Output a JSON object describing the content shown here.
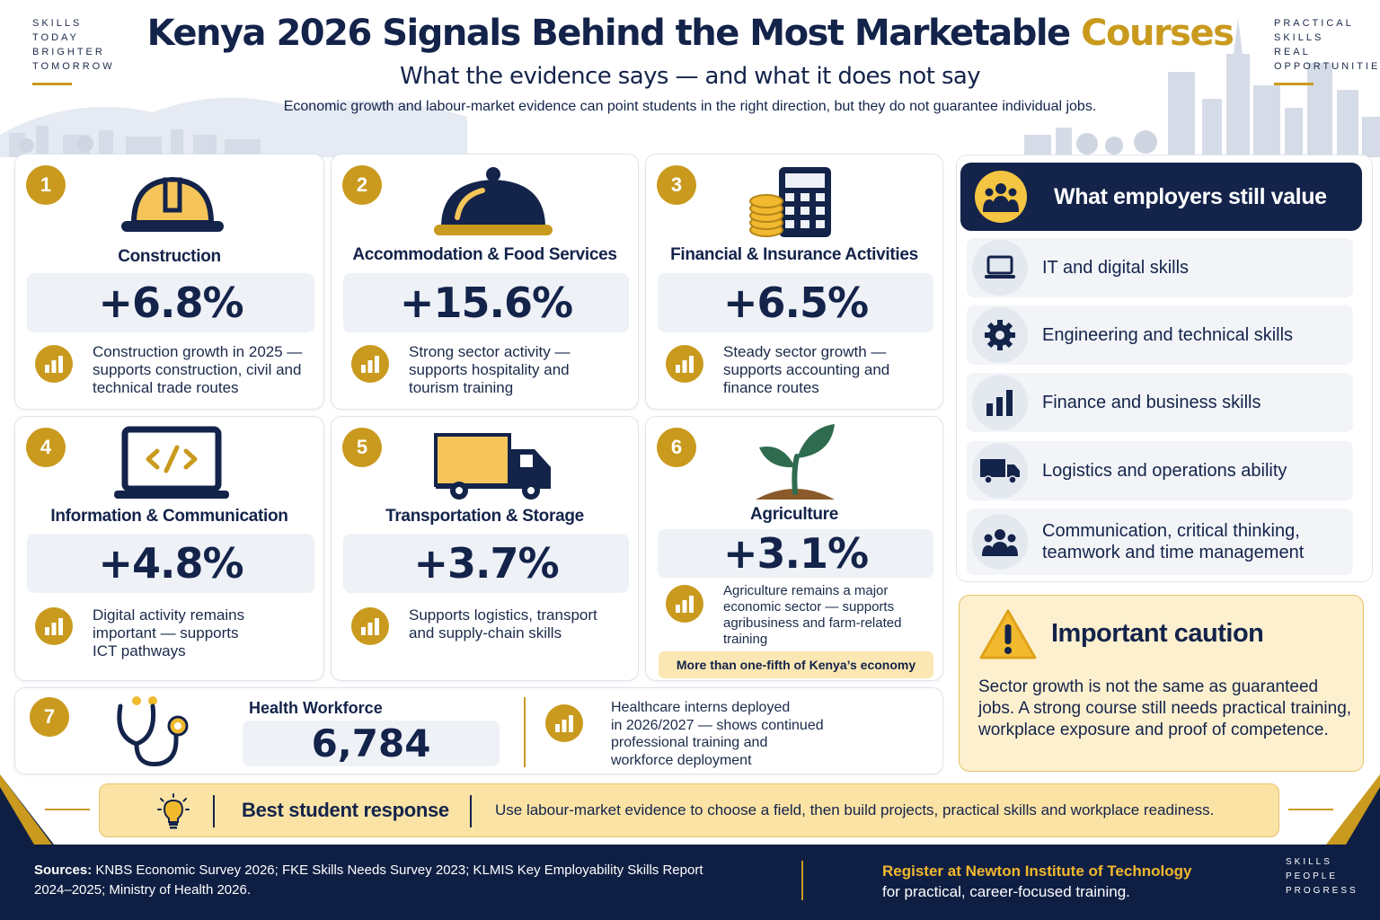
{
  "corner_left": [
    "SKILLS",
    "TODAY",
    "BRIGHTER",
    "TOMORROW"
  ],
  "corner_right": [
    "PRACTICAL",
    "SKILLS",
    "REAL",
    "OPPORTUNITIES"
  ],
  "header": {
    "title_main": "Kenya 2026 Signals Behind the Most Marketable ",
    "title_accent": "Courses",
    "subtitle": "What the evidence says — and what it does not say",
    "intro": "Economic growth and labour-market evidence can point students in the right direction, but they do not guarantee individual jobs."
  },
  "sectors": [
    {
      "number": "1",
      "title": "Construction",
      "stat": "+6.8%",
      "icon": "hard-hat-icon",
      "desc": [
        "Construction growth in 2025 —",
        "supports construction, civil and",
        "technical trade routes"
      ]
    },
    {
      "number": "2",
      "title": "Accommodation & Food Services",
      "stat": "+15.6%",
      "icon": "food-cloche-icon",
      "desc": [
        "Strong sector activity —",
        "supports hospitality and",
        "tourism training"
      ]
    },
    {
      "number": "3",
      "title": "Financial & Insurance Activities",
      "stat": "+6.5%",
      "icon": "calculator-coins-icon",
      "desc": [
        "Steady sector growth —",
        "supports accounting and",
        "finance routes"
      ]
    },
    {
      "number": "4",
      "title": "Information & Communication",
      "stat": "+4.8%",
      "icon": "laptop-code-icon",
      "desc": [
        "Digital activity remains",
        "important — supports",
        "ICT pathways"
      ]
    },
    {
      "number": "5",
      "title": "Transportation & Storage",
      "stat": "+3.7%",
      "icon": "truck-icon",
      "desc": [
        "Supports logistics, transport",
        "and supply-chain skills"
      ]
    },
    {
      "number": "6",
      "title": "Agriculture",
      "stat": "+3.1%",
      "icon": "sprout-icon",
      "desc": [
        "Agriculture remains a major",
        "economic sector — supports",
        "agribusiness and farm-related",
        "training"
      ],
      "note": "More than one-fifth of Kenya’s economy"
    }
  ],
  "health": {
    "number": "7",
    "title": "Health Workforce",
    "stat": "6,784",
    "icon": "stethoscope-icon",
    "desc": [
      "Healthcare interns deployed",
      "in 2026/2027 — shows continued",
      "professional training and",
      "workforce deployment"
    ]
  },
  "employers": {
    "title": "What employers still value",
    "items": [
      {
        "label": "IT and digital skills",
        "icon": "laptop-icon"
      },
      {
        "label": "Engineering and technical skills",
        "icon": "gear-icon"
      },
      {
        "label": "Finance and business skills",
        "icon": "bar-chart-icon"
      },
      {
        "label": "Logistics and operations ability",
        "icon": "truck-icon"
      },
      {
        "label": "Communication, critical thinking,\nteamwork and time management",
        "icon": "team-icon"
      }
    ]
  },
  "caution": {
    "title": "Important caution",
    "text": "Sector growth is not the same as guaranteed jobs. A strong course still needs practical training, workplace exposure and proof of competence."
  },
  "response": {
    "label": "Best student response",
    "text": "Use labour-market evidence to choose a field, then build projects, practical skills and workplace readiness."
  },
  "footer": {
    "sources_label": "Sources:",
    "sources_text": " KNBS Economic Survey 2026; FKE Skills Needs Survey 2023; KLMIS Key Employability Skills Report 2024–2025; Ministry of Health 2026.",
    "register_line1": "Register at Newton Institute of Technology",
    "register_line2": "for practical, career-focused training.",
    "corner": [
      "SKILLS",
      "PEOPLE",
      "PROGRESS"
    ]
  },
  "colors": {
    "navy": "#13234a",
    "gold": "#c99a1e",
    "stat_bg": "#eef1f6",
    "caution_bg": "#fdf0cf"
  }
}
